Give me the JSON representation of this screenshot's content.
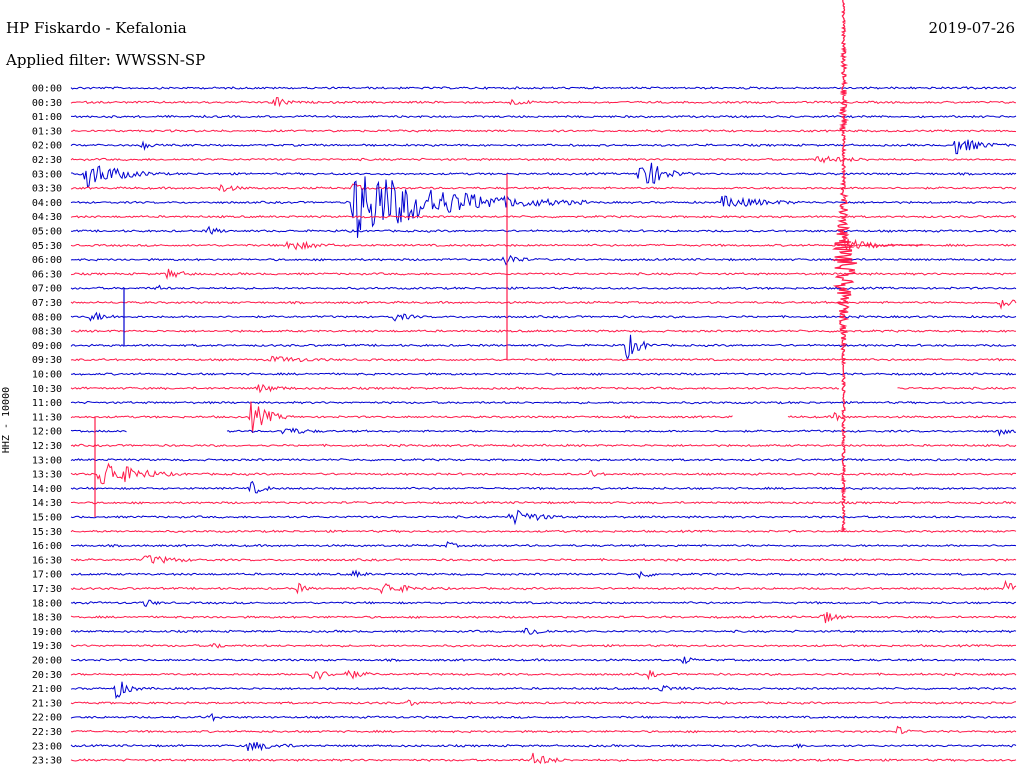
{
  "header": {
    "title": "HP Fiskardo - Kefalonia",
    "filter": "Applied filter: WWSSN-SP",
    "date": "2019-07-26"
  },
  "chart_data": {
    "type": "line",
    "title": "HP Fiskardo - Kefalonia",
    "subtitle": "Applied filter: WWSSN-SP",
    "ylabel": "HHZ - 10000",
    "trace_colors": [
      "#0000d0",
      "#ff1a4a"
    ],
    "categories": [
      "00:00",
      "00:30",
      "01:00",
      "01:30",
      "02:00",
      "02:30",
      "03:00",
      "03:30",
      "04:00",
      "04:30",
      "05:00",
      "05:30",
      "06:00",
      "06:30",
      "07:00",
      "07:30",
      "08:00",
      "08:30",
      "09:00",
      "09:30",
      "10:00",
      "10:30",
      "11:00",
      "11:30",
      "12:00",
      "12:30",
      "13:00",
      "13:30",
      "14:00",
      "14:30",
      "15:00",
      "15:30",
      "16:00",
      "16:30",
      "17:00",
      "17:30",
      "18:00",
      "18:30",
      "19:00",
      "19:30",
      "20:00",
      "20:30",
      "21:00",
      "21:30",
      "22:00",
      "22:30",
      "23:00",
      "23:30"
    ],
    "minutes_per_line": 30,
    "events": [
      {
        "row": 1,
        "minute": 6.4,
        "amp": 8,
        "dur": 0.4
      },
      {
        "row": 1,
        "minute": 13.8,
        "amp": 4,
        "dur": 0.8
      },
      {
        "row": 4,
        "minute": 2.2,
        "amp": 6,
        "dur": 0.3
      },
      {
        "row": 4,
        "minute": 28.0,
        "amp": 10,
        "dur": 0.8
      },
      {
        "row": 5,
        "minute": 23.6,
        "amp": 4,
        "dur": 1.5
      },
      {
        "row": 6,
        "minute": 0.4,
        "amp": 16,
        "dur": 1.0
      },
      {
        "row": 6,
        "minute": 18.0,
        "amp": 22,
        "dur": 0.6
      },
      {
        "row": 7,
        "minute": 4.7,
        "amp": 5,
        "dur": 0.6
      },
      {
        "row": 7,
        "minute": 8.9,
        "amp": 7,
        "dur": 0.3
      },
      {
        "row": 8,
        "minute": 8.9,
        "amp": 40,
        "dur": 2.5
      },
      {
        "row": 8,
        "minute": 20.6,
        "amp": 7,
        "dur": 1.5
      },
      {
        "row": 10,
        "minute": 4.3,
        "amp": 6,
        "dur": 0.4
      },
      {
        "row": 11,
        "minute": 6.8,
        "amp": 6,
        "dur": 1.0
      },
      {
        "row": 12,
        "minute": 13.7,
        "amp": 10,
        "dur": 0.4
      },
      {
        "row": 13,
        "minute": 3.0,
        "amp": 6,
        "dur": 0.6
      },
      {
        "row": 14,
        "minute": 2.7,
        "amp": 4,
        "dur": 0.3
      },
      {
        "row": 15,
        "minute": 29.4,
        "amp": 8,
        "dur": 0.5
      },
      {
        "row": 16,
        "minute": 0.6,
        "amp": 6,
        "dur": 0.6
      },
      {
        "row": 16,
        "minute": 10.2,
        "amp": 5,
        "dur": 0.6
      },
      {
        "row": 18,
        "minute": 17.6,
        "amp": 16,
        "dur": 0.4
      },
      {
        "row": 19,
        "minute": 6.3,
        "amp": 4,
        "dur": 1.5
      },
      {
        "row": 21,
        "minute": 5.9,
        "amp": 5,
        "dur": 0.8
      },
      {
        "row": 23,
        "minute": 5.7,
        "amp": 18,
        "dur": 0.5
      },
      {
        "row": 23,
        "minute": 24.2,
        "amp": 5,
        "dur": 0.3
      },
      {
        "row": 24,
        "minute": 6.7,
        "amp": 5,
        "dur": 0.8
      },
      {
        "row": 24,
        "minute": 29.4,
        "amp": 5,
        "dur": 0.4
      },
      {
        "row": 27,
        "minute": 0.9,
        "amp": 18,
        "dur": 1.0
      },
      {
        "row": 27,
        "minute": 16.4,
        "amp": 5,
        "dur": 0.4
      },
      {
        "row": 28,
        "minute": 5.7,
        "amp": 8,
        "dur": 0.4
      },
      {
        "row": 30,
        "minute": 13.9,
        "amp": 10,
        "dur": 0.8
      },
      {
        "row": 32,
        "minute": 11.9,
        "amp": 5,
        "dur": 0.3
      },
      {
        "row": 33,
        "minute": 2.3,
        "amp": 6,
        "dur": 1.0
      },
      {
        "row": 34,
        "minute": 8.9,
        "amp": 5,
        "dur": 0.4
      },
      {
        "row": 34,
        "minute": 18.0,
        "amp": 6,
        "dur": 0.4
      },
      {
        "row": 35,
        "minute": 7.1,
        "amp": 8,
        "dur": 0.3
      },
      {
        "row": 35,
        "minute": 9.8,
        "amp": 8,
        "dur": 0.8
      },
      {
        "row": 35,
        "minute": 29.6,
        "amp": 9,
        "dur": 0.4
      },
      {
        "row": 36,
        "minute": 2.3,
        "amp": 5,
        "dur": 0.4
      },
      {
        "row": 37,
        "minute": 23.8,
        "amp": 9,
        "dur": 0.4
      },
      {
        "row": 38,
        "minute": 14.4,
        "amp": 6,
        "dur": 0.6
      },
      {
        "row": 39,
        "minute": 4.5,
        "amp": 5,
        "dur": 0.3
      },
      {
        "row": 40,
        "minute": 19.4,
        "amp": 5,
        "dur": 0.3
      },
      {
        "row": 41,
        "minute": 7.6,
        "amp": 10,
        "dur": 0.4
      },
      {
        "row": 41,
        "minute": 8.7,
        "amp": 6,
        "dur": 0.6
      },
      {
        "row": 41,
        "minute": 18.3,
        "amp": 5,
        "dur": 0.3
      },
      {
        "row": 42,
        "minute": 1.4,
        "amp": 12,
        "dur": 0.4
      },
      {
        "row": 42,
        "minute": 18.6,
        "amp": 4,
        "dur": 0.8
      },
      {
        "row": 43,
        "minute": 10.7,
        "amp": 4,
        "dur": 0.4
      },
      {
        "row": 44,
        "minute": 4.3,
        "amp": 7,
        "dur": 0.3
      },
      {
        "row": 45,
        "minute": 26.2,
        "amp": 6,
        "dur": 0.3
      },
      {
        "row": 46,
        "minute": 5.6,
        "amp": 6,
        "dur": 1.0
      },
      {
        "row": 46,
        "minute": 22.9,
        "amp": 4,
        "dur": 0.3
      },
      {
        "row": 47,
        "minute": 14.6,
        "amp": 8,
        "dur": 0.6
      }
    ],
    "large_event": {
      "row": 6,
      "minute": 24.5,
      "note": "M earthquake trace spanning many lines"
    },
    "gaps": [
      {
        "row": 24,
        "from_minute": 1.8,
        "to_minute": 4.9
      },
      {
        "row": 21,
        "from_minute": 24.4,
        "to_minute": 26.2
      },
      {
        "row": 23,
        "from_minute": 21.0,
        "to_minute": 22.7
      }
    ]
  }
}
